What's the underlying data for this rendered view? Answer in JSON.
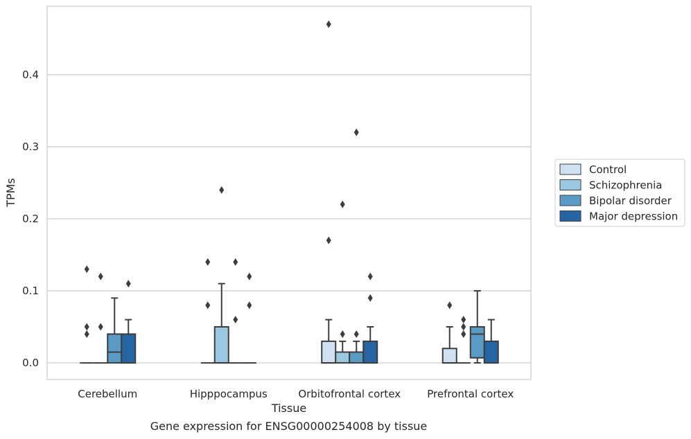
{
  "caption": "Gene expression for ENSG00000254008 by tissue",
  "chart_data": {
    "type": "box",
    "xlabel": "Tissue",
    "ylabel": "TPMs",
    "categories": [
      "Cerebellum",
      "Hipppocampus",
      "Orbitofrontal cortex",
      "Prefrontal cortex"
    ],
    "ylim": [
      -0.023,
      0.495
    ],
    "yticks": [
      0.0,
      0.1,
      0.2,
      0.3,
      0.4
    ],
    "ytick_labels": [
      "0.0",
      "0.1",
      "0.2",
      "0.3",
      "0.4"
    ],
    "grid": "horizontal",
    "legend_position": "right",
    "series": [
      {
        "name": "Control",
        "color": "#d0e1f2",
        "boxes": [
          {
            "q1": 0,
            "median": 0,
            "q3": 0,
            "whisker_low": 0,
            "whisker_high": 0,
            "outliers": [
              0.13,
              0.05,
              0.04
            ]
          },
          {
            "q1": 0,
            "median": 0,
            "q3": 0,
            "whisker_low": 0,
            "whisker_high": 0,
            "outliers": [
              0.14,
              0.08
            ]
          },
          {
            "q1": 0,
            "median": 0,
            "q3": 0.03,
            "whisker_low": 0,
            "whisker_high": 0.06,
            "outliers": [
              0.47,
              0.17
            ]
          },
          {
            "q1": 0,
            "median": 0,
            "q3": 0.02,
            "whisker_low": 0,
            "whisker_high": 0.05,
            "outliers": [
              0.08
            ]
          }
        ]
      },
      {
        "name": "Schizophrenia",
        "color": "#9ac8e0",
        "boxes": [
          {
            "q1": 0,
            "median": 0,
            "q3": 0,
            "whisker_low": 0,
            "whisker_high": 0,
            "outliers": [
              0.12,
              0.05
            ]
          },
          {
            "q1": 0,
            "median": 0,
            "q3": 0.05,
            "whisker_low": 0,
            "whisker_high": 0.11,
            "outliers": [
              0.24
            ]
          },
          {
            "q1": 0,
            "median": 0.015,
            "q3": 0.015,
            "whisker_low": 0,
            "whisker_high": 0.03,
            "outliers": [
              0.22,
              0.04
            ]
          },
          {
            "q1": 0,
            "median": 0,
            "q3": 0,
            "whisker_low": 0,
            "whisker_high": 0,
            "outliers": [
              0.06,
              0.05,
              0.04
            ]
          }
        ]
      },
      {
        "name": "Bipolar disorder",
        "color": "#5a9bc6",
        "boxes": [
          {
            "q1": 0,
            "median": 0.015,
            "q3": 0.04,
            "whisker_low": 0,
            "whisker_high": 0.09,
            "outliers": []
          },
          {
            "q1": 0,
            "median": 0,
            "q3": 0,
            "whisker_low": 0,
            "whisker_high": 0,
            "outliers": [
              0.14,
              0.06
            ]
          },
          {
            "q1": 0,
            "median": 0.015,
            "q3": 0.015,
            "whisker_low": 0,
            "whisker_high": 0.03,
            "outliers": [
              0.32,
              0.04
            ]
          },
          {
            "q1": 0.007,
            "median": 0.04,
            "q3": 0.05,
            "whisker_low": 0,
            "whisker_high": 0.1,
            "outliers": []
          }
        ]
      },
      {
        "name": "Major depression",
        "color": "#2565a3",
        "boxes": [
          {
            "q1": 0,
            "median": 0,
            "q3": 0.04,
            "whisker_low": 0,
            "whisker_high": 0.06,
            "outliers": [
              0.11
            ]
          },
          {
            "q1": 0,
            "median": 0,
            "q3": 0,
            "whisker_low": 0,
            "whisker_high": 0,
            "outliers": [
              0.12,
              0.08
            ]
          },
          {
            "q1": 0,
            "median": 0,
            "q3": 0.03,
            "whisker_low": 0,
            "whisker_high": 0.05,
            "outliers": [
              0.12,
              0.09
            ]
          },
          {
            "q1": 0,
            "median": 0,
            "q3": 0.03,
            "whisker_low": 0,
            "whisker_high": 0.06,
            "outliers": []
          }
        ]
      }
    ]
  }
}
